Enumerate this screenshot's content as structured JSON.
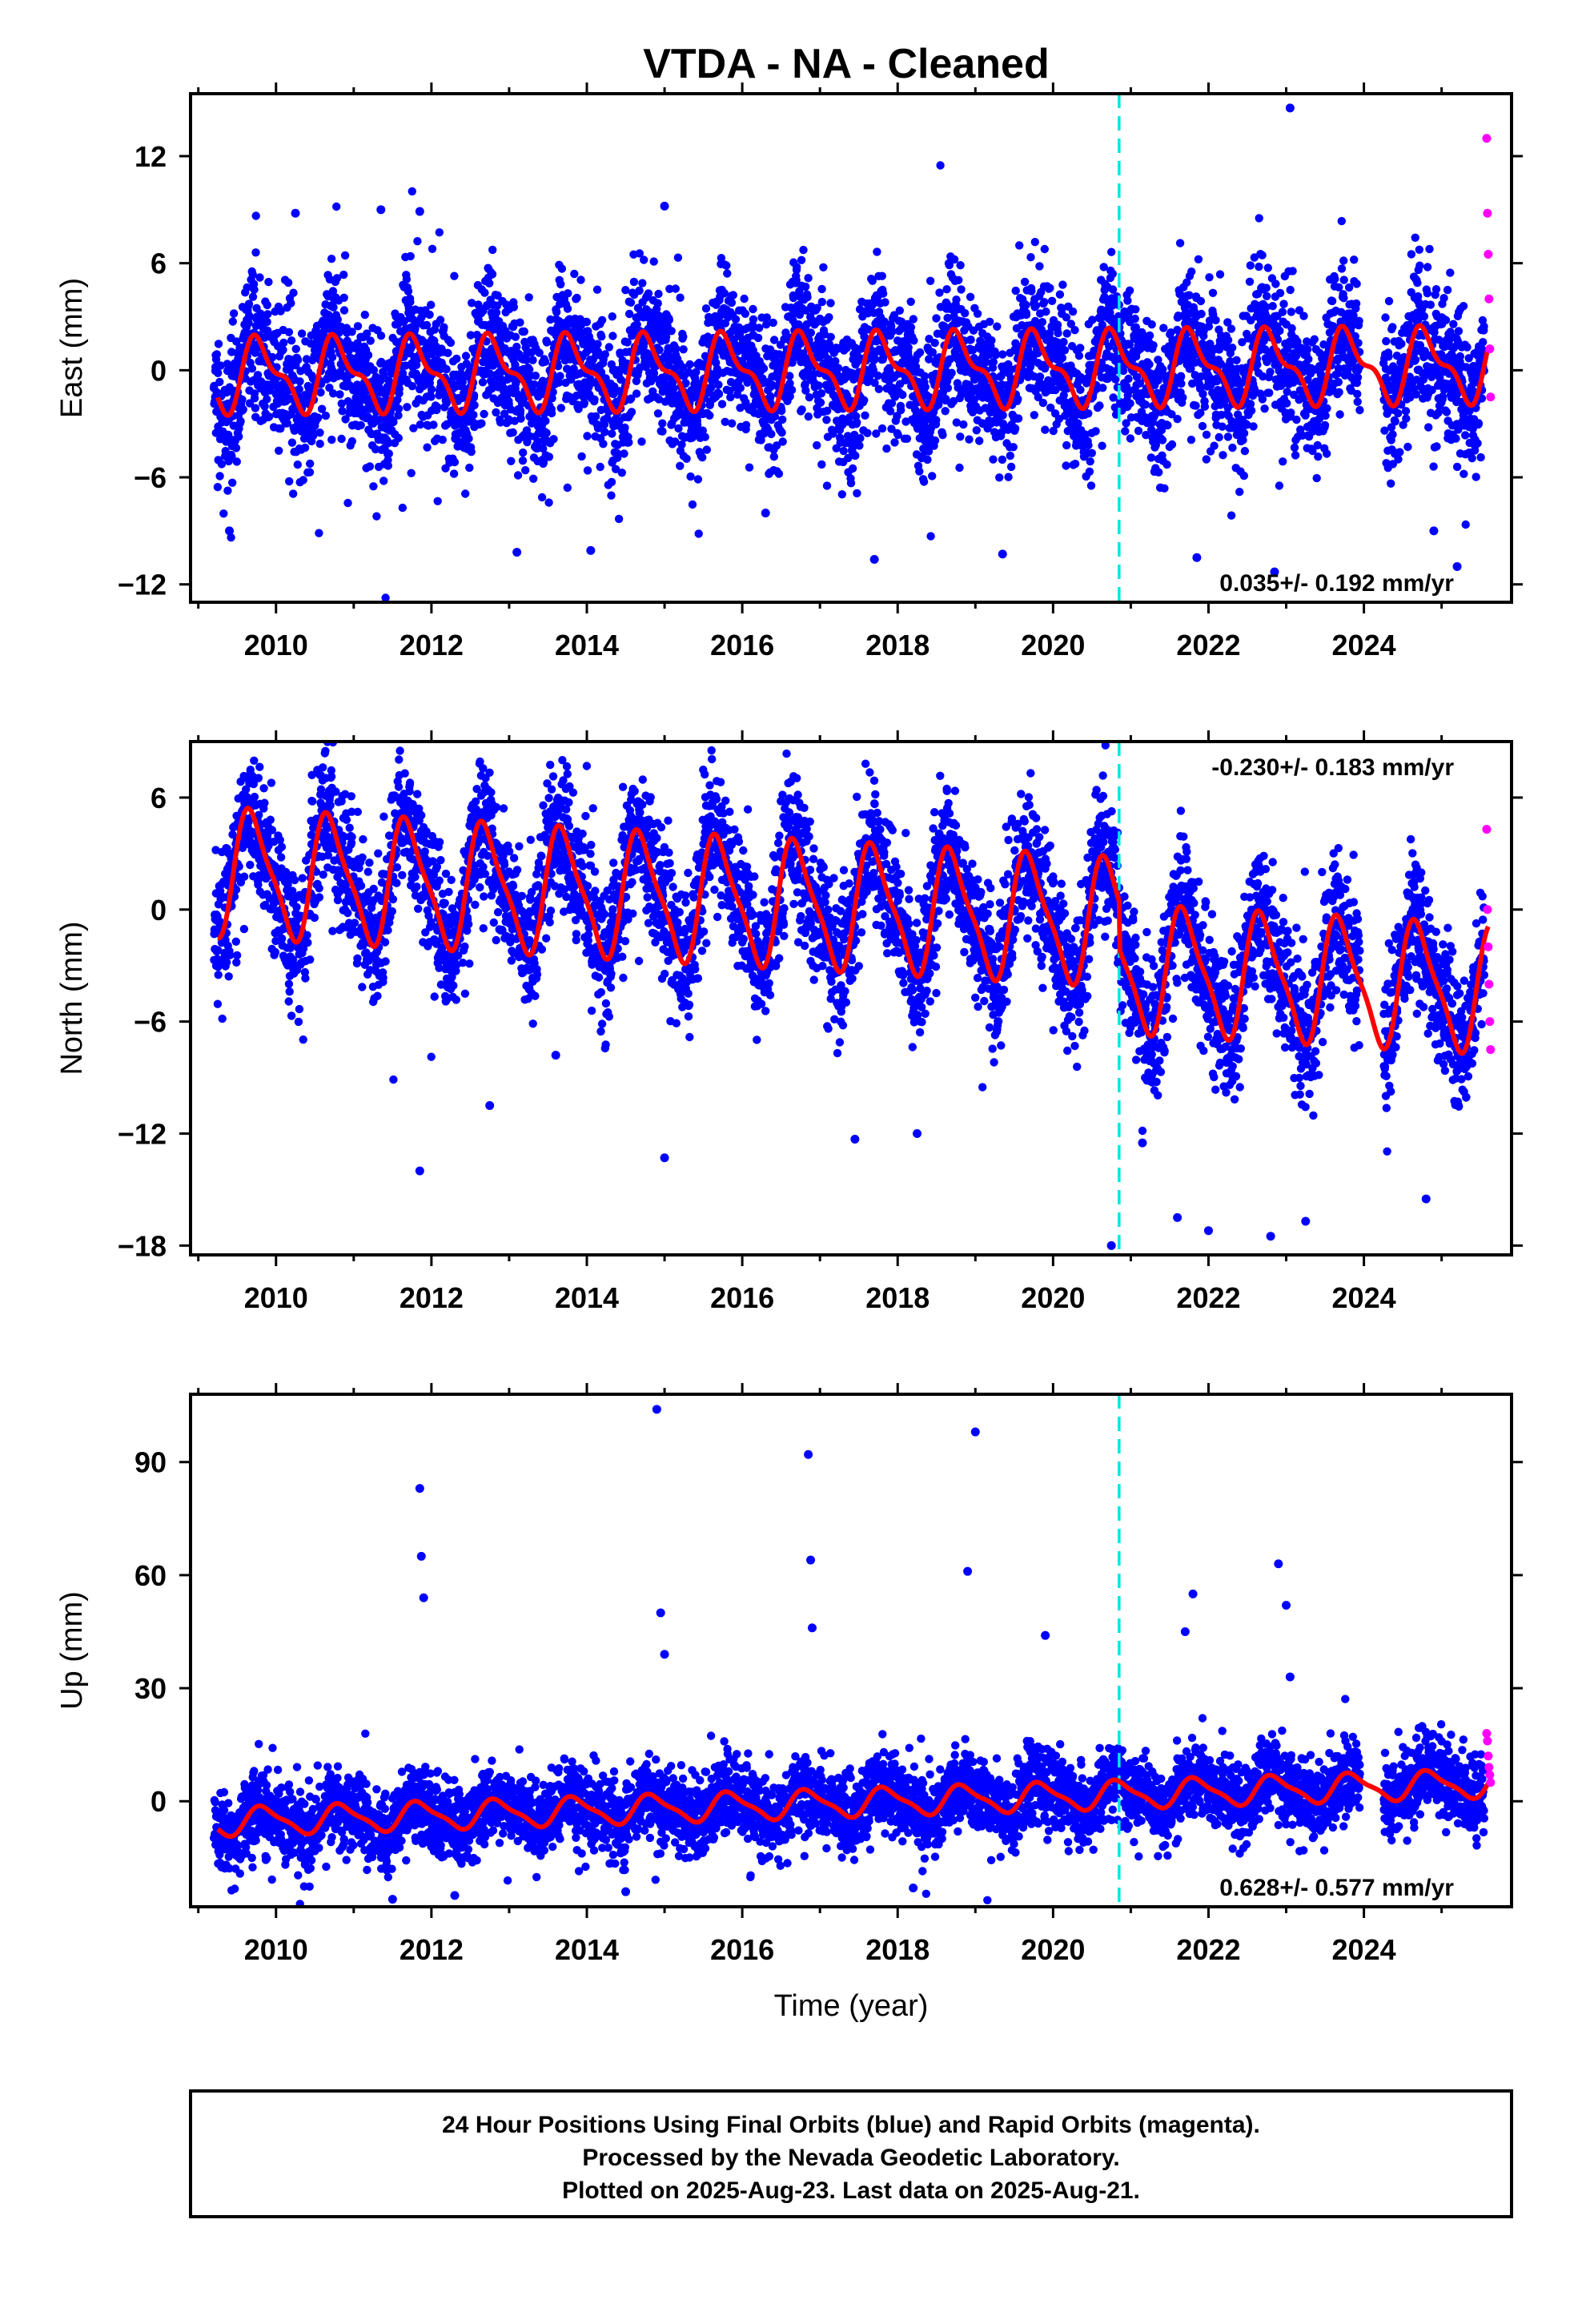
{
  "title": "VTDA  - NA - Cleaned",
  "colors": {
    "final": "#0000ff",
    "rapid": "#ff00ff",
    "model": "#ff0000",
    "break": "#00e5e5",
    "axis": "#000000"
  },
  "chart_data": [
    {
      "type": "scatter",
      "panel": "east",
      "ylabel": "East (mm)",
      "xlim": [
        2008.9,
        2025.9
      ],
      "ylim": [
        -13,
        15.5
      ],
      "yticks": [
        -12,
        -6,
        0,
        6,
        12
      ],
      "xticks": [
        2010,
        2012,
        2014,
        2016,
        2018,
        2020,
        2022,
        2024
      ],
      "rate_text": "0.035+/- 0.192 mm/yr",
      "rate_position": "bottom-right",
      "break_year": 2020.85,
      "model": {
        "amp_annual": 1.8,
        "phase": 0.55,
        "amp_semi": 0.8,
        "trend": 0.035,
        "offset": 0,
        "base_year": 2017.4,
        "start": 2009.25,
        "end": 2025.6
      },
      "final_series": {
        "start": 2009.2,
        "end": 2025.55,
        "spread": 2.0,
        "gaps": [
          [
            2023.95,
            2024.25
          ]
        ]
      },
      "rapid_points": {
        "x": [
          2025.58,
          2025.59,
          2025.6,
          2025.61,
          2025.62,
          2025.63
        ],
        "y": [
          13,
          8.8,
          6.5,
          4,
          1.2,
          -1.5
        ]
      },
      "outliers": {
        "x": [
          2023.05,
          2010.25,
          2011.35,
          2015.0,
          2016.3,
          2009.4,
          2013.1,
          2014.05,
          2017.7,
          2019.35,
          2021.85,
          2022.85,
          2025.2,
          2011.85,
          2024.9
        ],
        "y": [
          14.7,
          8.8,
          9,
          9.2,
          -8,
          -9,
          -10.2,
          -10.1,
          -10.6,
          -10.3,
          -10.5,
          -11.3,
          -11,
          8.9,
          -9
        ]
      }
    },
    {
      "type": "scatter",
      "panel": "north",
      "ylabel": "North (mm)",
      "xlim": [
        2008.9,
        2025.9
      ],
      "ylim": [
        -18.5,
        9
      ],
      "yticks": [
        -18,
        -12,
        -6,
        0,
        6
      ],
      "xticks": [
        2010,
        2012,
        2014,
        2016,
        2018,
        2020,
        2022,
        2024
      ],
      "rate_text": "-0.230+/- 0.183 mm/yr",
      "rate_position": "top-right",
      "break_year": 2020.85,
      "break_offset": -2.5,
      "model": {
        "amp_annual": 3.2,
        "phase": 0.45,
        "amp_semi": 0.8,
        "trend": -0.23,
        "offset": 2.0,
        "base_year": 2009.25,
        "start": 2009.25,
        "end": 2025.6
      },
      "final_series": {
        "start": 2009.2,
        "end": 2025.55,
        "spread": 1.8,
        "gaps": [
          [
            2023.95,
            2024.25
          ]
        ]
      },
      "rapid_points": {
        "x": [
          2025.58,
          2025.59,
          2025.6,
          2025.61,
          2025.62,
          2025.63
        ],
        "y": [
          4.3,
          0,
          -2,
          -4,
          -6,
          -7.5
        ]
      },
      "outliers": {
        "x": [
          2011.85,
          2012.75,
          2013.6,
          2015.0,
          2017.45,
          2018.25,
          2020.75,
          2021.6,
          2022.0,
          2022.8,
          2023.25,
          2024.8,
          2021.15
        ],
        "y": [
          -14,
          -10.5,
          -7.8,
          -13.3,
          -12.3,
          -12.0,
          -18,
          -16.5,
          -17.2,
          -17.5,
          -16.7,
          -15.5,
          -12.5
        ]
      }
    },
    {
      "type": "scatter",
      "panel": "up",
      "ylabel": "Up (mm)",
      "xlabel": "Time (year)",
      "xlim": [
        2008.9,
        2025.9
      ],
      "ylim": [
        -28,
        108
      ],
      "yticks": [
        0,
        30,
        60,
        90
      ],
      "xticks": [
        2010,
        2012,
        2014,
        2016,
        2018,
        2020,
        2022,
        2024
      ],
      "rate_text": "0.628+/- 0.577 mm/yr",
      "rate_position": "bottom-right",
      "break_year": 2020.85,
      "model": {
        "amp_annual": 3.5,
        "phase": 0.6,
        "amp_semi": 1.0,
        "trend": 0.628,
        "offset": -5.5,
        "base_year": 2009.25,
        "start": 2009.25,
        "end": 2025.6
      },
      "final_series": {
        "start": 2009.2,
        "end": 2025.55,
        "spread": 5.0,
        "gaps": [
          [
            2023.95,
            2024.25
          ]
        ]
      },
      "rapid_points": {
        "x": [
          2025.58,
          2025.59,
          2025.6,
          2025.61,
          2025.62,
          2025.63
        ],
        "y": [
          18,
          16,
          12,
          9,
          7,
          5
        ]
      },
      "outliers": {
        "x": [
          2011.85,
          2011.87,
          2011.9,
          2014.9,
          2014.95,
          2015.0,
          2016.85,
          2016.88,
          2016.9,
          2018.9,
          2019.0,
          2019.9,
          2021.7,
          2021.8,
          2022.9,
          2023.0,
          2023.05,
          2011.5,
          2014.5,
          2018.2,
          2012.3
        ],
        "y": [
          83,
          65,
          54,
          104,
          50,
          39,
          92,
          64,
          46,
          61,
          98,
          44,
          45,
          55,
          63,
          52,
          33,
          -26,
          -24,
          -23,
          -25
        ]
      }
    }
  ],
  "footer": {
    "line1": "24 Hour Positions Using Final Orbits (blue) and Rapid Orbits (magenta).",
    "line2": "Processed by the Nevada Geodetic Laboratory.",
    "line3": "Plotted on 2025-Aug-23. Last data on 2025-Aug-21."
  }
}
